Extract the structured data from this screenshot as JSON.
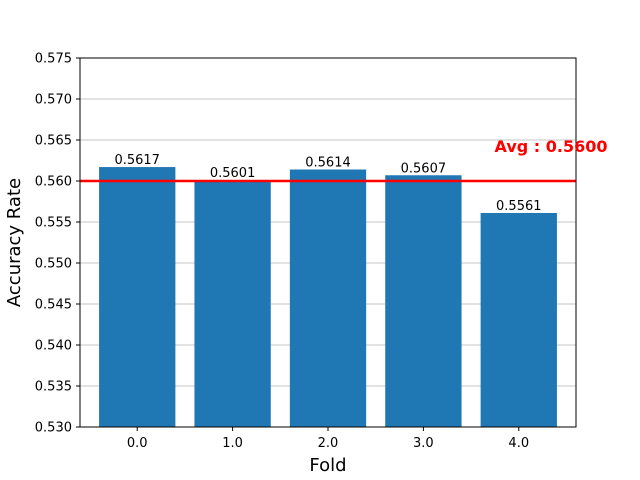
{
  "chart_data": {
    "type": "bar",
    "categories": [
      "0.0",
      "1.0",
      "2.0",
      "3.0",
      "4.0"
    ],
    "values": [
      0.5617,
      0.5601,
      0.5614,
      0.5607,
      0.5561
    ],
    "data_labels": [
      "0.5617",
      "0.5601",
      "0.5614",
      "0.5607",
      "0.5561"
    ],
    "xlabel": "Fold",
    "ylabel": "Accuracy Rate",
    "ylim": [
      0.53,
      0.575
    ],
    "yticks": [
      0.53,
      0.535,
      0.54,
      0.545,
      0.55,
      0.555,
      0.56,
      0.565,
      0.57,
      0.575
    ],
    "ytick_labels": [
      "0.530",
      "0.535",
      "0.540",
      "0.545",
      "0.550",
      "0.555",
      "0.560",
      "0.565",
      "0.570",
      "0.575"
    ],
    "grid": "y",
    "bar_color": "#1f77b4",
    "average": {
      "value": 0.56,
      "label": "Avg : 0.5600",
      "color": "#ff0000"
    }
  }
}
